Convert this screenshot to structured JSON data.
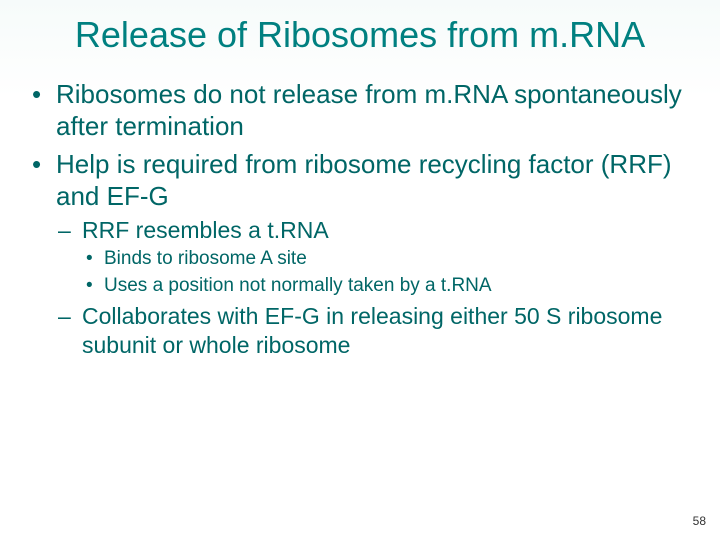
{
  "colors": {
    "title": "#008080",
    "body": "#006666",
    "background": "#ffffff",
    "pagenum": "#333333"
  },
  "typography": {
    "font_family": "Arial",
    "title_fontsize_pt": 27,
    "lvl1_fontsize_pt": 20,
    "lvl2_fontsize_pt": 17,
    "lvl3_fontsize_pt": 14
  },
  "slide": {
    "title": "Release of Ribosomes from m.RNA",
    "bullets": [
      {
        "text": "Ribosomes do not release from m.RNA spontaneously after termination"
      },
      {
        "text": "Help is required from ribosome recycling factor (RRF) and EF-G",
        "children": [
          {
            "text": "RRF resembles a t.RNA",
            "children": [
              {
                "text": "Binds to ribosome A site"
              },
              {
                "text": "Uses a position not normally taken by a t.RNA"
              }
            ]
          },
          {
            "text": "Collaborates with EF-G in releasing either 50 S ribosome subunit or whole ribosome"
          }
        ]
      }
    ],
    "page_number": "58"
  }
}
